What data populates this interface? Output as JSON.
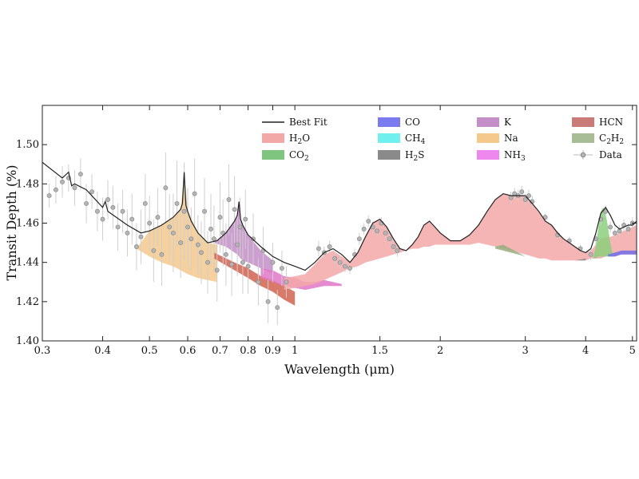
{
  "chart_data": {
    "type": "area",
    "xlabel": "Wavelength (μm)",
    "ylabel": "Transit Depth (%)",
    "x_scale": "log",
    "xlim": [
      0.3,
      5.1
    ],
    "ylim": [
      1.4,
      1.52
    ],
    "xticks": [
      {
        "value": 0.3,
        "label": "0.3"
      },
      {
        "value": 0.4,
        "label": "0.4"
      },
      {
        "value": 0.5,
        "label": "0.5"
      },
      {
        "value": 0.6,
        "label": "0.6"
      },
      {
        "value": 0.7,
        "label": "0.7"
      },
      {
        "value": 0.8,
        "label": "0.8"
      },
      {
        "value": 0.9,
        "label": "0.9"
      },
      {
        "value": 1.0,
        "label": "1"
      },
      {
        "value": 1.5,
        "label": "1.5"
      },
      {
        "value": 2.0,
        "label": "2"
      },
      {
        "value": 3.0,
        "label": "3"
      },
      {
        "value": 4.0,
        "label": "4"
      },
      {
        "value": 5.0,
        "label": "5"
      }
    ],
    "yticks": [
      {
        "value": 1.4,
        "label": "1.40"
      },
      {
        "value": 1.42,
        "label": "1.42"
      },
      {
        "value": 1.44,
        "label": "1.44"
      },
      {
        "value": 1.46,
        "label": "1.46"
      },
      {
        "value": 1.48,
        "label": "1.48"
      },
      {
        "value": 1.5,
        "label": "1.50"
      }
    ],
    "legend": {
      "placement": "top-right",
      "entries": [
        {
          "id": "best-fit",
          "label": "Best Fit",
          "kind": "line",
          "color": "#222222"
        },
        {
          "id": "co",
          "label": "CO",
          "kind": "patch",
          "color": "#7b7bf0"
        },
        {
          "id": "k",
          "label": "K",
          "kind": "patch",
          "color": "#c48ec8"
        },
        {
          "id": "hcn",
          "label": "HCN",
          "kind": "patch",
          "color": "#c97b77"
        },
        {
          "id": "h2o",
          "label": "H2O",
          "sub": "2",
          "label_parts": [
            "H",
            "2",
            "O"
          ],
          "kind": "patch",
          "color": "#f3a8a8"
        },
        {
          "id": "ch4",
          "label": "CH4",
          "label_parts": [
            "CH",
            "4",
            ""
          ],
          "kind": "patch",
          "color": "#6ff0ee"
        },
        {
          "id": "na",
          "label": "Na",
          "kind": "patch",
          "color": "#f5c88c"
        },
        {
          "id": "c2h2",
          "label": "C2H2",
          "label_parts": [
            "C",
            "2",
            "H",
            "2"
          ],
          "kind": "patch",
          "color": "#a8bd95"
        },
        {
          "id": "co2",
          "label": "CO2",
          "label_parts": [
            "CO",
            "2",
            ""
          ],
          "kind": "patch",
          "color": "#7fc47f"
        },
        {
          "id": "h2s",
          "label": "H2S",
          "label_parts": [
            "H",
            "2",
            "S"
          ],
          "kind": "patch",
          "color": "#8a8a8a"
        },
        {
          "id": "nh3",
          "label": "NH3",
          "label_parts": [
            "NH",
            "3",
            ""
          ],
          "kind": "patch",
          "color": "#ee88ee"
        },
        {
          "id": "data",
          "label": "Data",
          "kind": "marker",
          "color": "#888888"
        }
      ]
    },
    "best_fit": {
      "x": [
        0.3,
        0.33,
        0.34,
        0.345,
        0.35,
        0.37,
        0.4,
        0.405,
        0.41,
        0.45,
        0.48,
        0.5,
        0.53,
        0.56,
        0.58,
        0.585,
        0.59,
        0.595,
        0.6,
        0.61,
        0.63,
        0.66,
        0.69,
        0.72,
        0.75,
        0.76,
        0.766,
        0.772,
        0.78,
        0.8,
        0.85,
        0.9,
        0.95,
        1.0,
        1.05,
        1.1,
        1.15,
        1.2,
        1.25,
        1.3,
        1.35,
        1.4,
        1.45,
        1.5,
        1.55,
        1.6,
        1.65,
        1.7,
        1.75,
        1.8,
        1.85,
        1.9,
        1.95,
        2.0,
        2.1,
        2.2,
        2.3,
        2.4,
        2.5,
        2.6,
        2.7,
        2.8,
        2.9,
        3.0,
        3.1,
        3.2,
        3.3,
        3.4,
        3.5,
        3.6,
        3.7,
        3.8,
        3.9,
        4.0,
        4.1,
        4.2,
        4.3,
        4.4,
        4.5,
        4.6,
        4.7,
        4.8,
        4.9,
        5.0,
        5.1
      ],
      "y": [
        1.491,
        1.483,
        1.486,
        1.479,
        1.48,
        1.477,
        1.468,
        1.471,
        1.466,
        1.459,
        1.455,
        1.456,
        1.459,
        1.463,
        1.467,
        1.47,
        1.486,
        1.469,
        1.466,
        1.461,
        1.455,
        1.45,
        1.451,
        1.455,
        1.461,
        1.464,
        1.471,
        1.462,
        1.459,
        1.454,
        1.448,
        1.443,
        1.44,
        1.438,
        1.436,
        1.44,
        1.445,
        1.447,
        1.444,
        1.44,
        1.445,
        1.453,
        1.46,
        1.462,
        1.458,
        1.452,
        1.447,
        1.446,
        1.449,
        1.453,
        1.459,
        1.461,
        1.458,
        1.455,
        1.451,
        1.451,
        1.454,
        1.459,
        1.466,
        1.472,
        1.475,
        1.474,
        1.474,
        1.474,
        1.47,
        1.466,
        1.461,
        1.459,
        1.455,
        1.452,
        1.45,
        1.448,
        1.446,
        1.445,
        1.447,
        1.455,
        1.465,
        1.468,
        1.464,
        1.459,
        1.457,
        1.458,
        1.459,
        1.459,
        1.461
      ]
    },
    "series": [
      {
        "id": "na",
        "color": "#f5c88c",
        "x": [
          0.47,
          0.5,
          0.53,
          0.56,
          0.58,
          0.59,
          0.6,
          0.63,
          0.66,
          0.69
        ],
        "y_top": [
          1.447,
          1.456,
          1.459,
          1.463,
          1.467,
          1.486,
          1.466,
          1.455,
          1.45,
          1.449
        ],
        "y_base": [
          1.447,
          1.443,
          1.44,
          1.438,
          1.436,
          1.435,
          1.434,
          1.432,
          1.431,
          1.43
        ]
      },
      {
        "id": "k",
        "color": "#c48ec8",
        "x": [
          0.68,
          0.72,
          0.75,
          0.76,
          0.766,
          0.772,
          0.78,
          0.8,
          0.85,
          0.9
        ],
        "y_top": [
          1.45,
          1.455,
          1.461,
          1.464,
          1.471,
          1.462,
          1.459,
          1.454,
          1.446,
          1.441
        ],
        "y_base": [
          1.45,
          1.448,
          1.445,
          1.444,
          1.443,
          1.442,
          1.441,
          1.44,
          1.437,
          1.434
        ]
      },
      {
        "id": "hcn",
        "color": "#d2614f",
        "x": [
          0.68,
          0.75,
          0.8,
          0.85,
          0.9,
          0.95,
          1.0
        ],
        "y_top": [
          1.445,
          1.44,
          1.437,
          1.433,
          1.431,
          1.428,
          1.425
        ],
        "y_base": [
          1.442,
          1.436,
          1.432,
          1.428,
          1.425,
          1.421,
          1.418
        ]
      },
      {
        "id": "nh3",
        "color": "#e078c8",
        "x": [
          0.85,
          0.9,
          0.95,
          1.0,
          1.05,
          1.1,
          1.15,
          1.2,
          1.25
        ],
        "y_top": [
          1.437,
          1.436,
          1.433,
          1.432,
          1.43,
          1.43,
          1.431,
          1.43,
          1.429
        ],
        "y_base": [
          1.432,
          1.43,
          1.428,
          1.427,
          1.426,
          1.427,
          1.428,
          1.428,
          1.428
        ]
      },
      {
        "id": "h2o",
        "color": "#f3a8a8",
        "x": [
          0.95,
          1.0,
          1.05,
          1.1,
          1.15,
          1.2,
          1.25,
          1.3,
          1.35,
          1.4,
          1.45,
          1.5,
          1.55,
          1.6,
          1.65,
          1.7,
          1.75,
          1.8,
          1.85,
          1.9,
          1.95,
          2.0,
          2.1,
          2.2,
          2.3,
          2.4,
          2.5,
          2.6,
          2.7,
          2.8,
          2.9,
          3.0,
          3.1,
          3.2,
          3.3,
          3.4,
          3.5,
          3.6,
          3.7,
          3.8,
          3.9,
          4.0,
          4.1,
          4.2,
          4.3,
          4.4,
          4.5,
          4.6,
          4.7,
          4.8,
          4.9,
          5.0,
          5.1
        ],
        "y_top": [
          1.432,
          1.433,
          1.434,
          1.439,
          1.444,
          1.446,
          1.443,
          1.44,
          1.445,
          1.453,
          1.46,
          1.462,
          1.458,
          1.452,
          1.447,
          1.446,
          1.449,
          1.453,
          1.459,
          1.461,
          1.458,
          1.455,
          1.451,
          1.451,
          1.454,
          1.459,
          1.466,
          1.472,
          1.475,
          1.474,
          1.474,
          1.474,
          1.47,
          1.466,
          1.461,
          1.459,
          1.455,
          1.452,
          1.45,
          1.448,
          1.446,
          1.445,
          1.446,
          1.449,
          1.452,
          1.453,
          1.453,
          1.454,
          1.455,
          1.456,
          1.457,
          1.458,
          1.459
        ],
        "y_base": [
          1.426,
          1.427,
          1.428,
          1.429,
          1.431,
          1.433,
          1.435,
          1.437,
          1.438,
          1.44,
          1.441,
          1.442,
          1.443,
          1.444,
          1.445,
          1.446,
          1.447,
          1.447,
          1.448,
          1.448,
          1.449,
          1.449,
          1.449,
          1.449,
          1.449,
          1.45,
          1.449,
          1.448,
          1.447,
          1.446,
          1.445,
          1.444,
          1.443,
          1.442,
          1.442,
          1.441,
          1.441,
          1.441,
          1.441,
          1.441,
          1.441,
          1.441,
          1.442,
          1.442,
          1.442,
          1.443,
          1.443,
          1.443,
          1.444,
          1.444,
          1.444,
          1.444,
          1.444
        ]
      },
      {
        "id": "co2",
        "color": "#8ccf7e",
        "x": [
          4.15,
          4.2,
          4.25,
          4.3,
          4.35,
          4.4,
          4.45,
          4.5,
          4.55
        ],
        "y_top": [
          1.443,
          1.448,
          1.458,
          1.466,
          1.468,
          1.465,
          1.458,
          1.45,
          1.444
        ],
        "y_base": [
          1.442,
          1.442,
          1.443,
          1.443,
          1.443,
          1.443,
          1.443,
          1.443,
          1.443
        ]
      },
      {
        "id": "c2h2",
        "color": "#98ad7e",
        "x": [
          2.6,
          2.7,
          2.8,
          2.9,
          3.0,
          3.05
        ],
        "y_top": [
          1.448,
          1.449,
          1.447,
          1.445,
          1.443,
          1.442
        ],
        "y_base": [
          1.447,
          1.446,
          1.445,
          1.444,
          1.443,
          1.442
        ]
      },
      {
        "id": "ch4",
        "color": "#6ff0ee",
        "x": [
          3.2,
          3.3,
          3.4,
          3.5
        ],
        "y_top": [
          1.442,
          1.442,
          1.441,
          1.441
        ],
        "y_base": [
          1.442,
          1.442,
          1.441,
          1.441
        ]
      },
      {
        "id": "co",
        "color": "#6e6ee8",
        "x": [
          4.45,
          4.6,
          4.75,
          4.9,
          5.1
        ],
        "y_top": [
          1.444,
          1.445,
          1.446,
          1.446,
          1.446
        ],
        "y_base": [
          1.443,
          1.443,
          1.444,
          1.444,
          1.444
        ]
      },
      {
        "id": "h2s",
        "color": "#8a8a8a",
        "x": [
          3.6,
          3.8,
          4.0
        ],
        "y_top": [
          1.441,
          1.441,
          1.442
        ],
        "y_base": [
          1.441,
          1.441,
          1.441
        ]
      }
    ],
    "data_points": {
      "x": [
        0.31,
        0.32,
        0.33,
        0.34,
        0.35,
        0.36,
        0.37,
        0.38,
        0.39,
        0.4,
        0.41,
        0.42,
        0.43,
        0.44,
        0.45,
        0.46,
        0.47,
        0.48,
        0.49,
        0.5,
        0.51,
        0.52,
        0.53,
        0.54,
        0.55,
        0.56,
        0.57,
        0.58,
        0.59,
        0.6,
        0.61,
        0.62,
        0.63,
        0.64,
        0.65,
        0.66,
        0.67,
        0.68,
        0.69,
        0.7,
        0.71,
        0.72,
        0.73,
        0.74,
        0.75,
        0.76,
        0.77,
        0.78,
        0.79,
        0.8,
        0.82,
        0.84,
        0.86,
        0.88,
        0.9,
        0.92,
        0.94,
        0.96,
        1.12,
        1.15,
        1.18,
        1.21,
        1.24,
        1.27,
        1.3,
        1.33,
        1.36,
        1.39,
        1.42,
        1.45,
        1.48,
        1.51,
        1.54,
        1.57,
        1.6,
        1.63,
        2.8,
        2.85,
        2.9,
        2.95,
        3.0,
        3.05,
        3.1,
        3.3,
        3.5,
        3.7,
        3.9,
        4.1,
        4.2,
        4.3,
        4.4,
        4.5,
        4.6,
        4.7,
        4.8,
        4.9,
        5.0
      ],
      "y": [
        1.474,
        1.477,
        1.481,
        1.483,
        1.478,
        1.485,
        1.47,
        1.476,
        1.466,
        1.462,
        1.472,
        1.468,
        1.458,
        1.466,
        1.455,
        1.462,
        1.448,
        1.453,
        1.47,
        1.46,
        1.446,
        1.463,
        1.444,
        1.478,
        1.458,
        1.455,
        1.47,
        1.45,
        1.466,
        1.458,
        1.452,
        1.475,
        1.449,
        1.445,
        1.466,
        1.44,
        1.457,
        1.452,
        1.436,
        1.463,
        1.455,
        1.444,
        1.472,
        1.439,
        1.467,
        1.449,
        1.458,
        1.44,
        1.462,
        1.438,
        1.452,
        1.43,
        1.446,
        1.42,
        1.44,
        1.417,
        1.437,
        1.43,
        1.447,
        1.445,
        1.448,
        1.442,
        1.44,
        1.438,
        1.437,
        1.444,
        1.452,
        1.457,
        1.461,
        1.458,
        1.456,
        1.46,
        1.455,
        1.452,
        1.448,
        1.446,
        1.473,
        1.475,
        1.474,
        1.476,
        1.472,
        1.474,
        1.471,
        1.463,
        1.454,
        1.451,
        1.447,
        1.444,
        1.452,
        1.462,
        1.466,
        1.458,
        1.455,
        1.456,
        1.459,
        1.457,
        1.46
      ],
      "err": [
        0.006,
        0.007,
        0.008,
        0.007,
        0.009,
        0.008,
        0.01,
        0.009,
        0.01,
        0.011,
        0.01,
        0.011,
        0.012,
        0.011,
        0.012,
        0.013,
        0.012,
        0.014,
        0.015,
        0.014,
        0.016,
        0.015,
        0.016,
        0.018,
        0.017,
        0.02,
        0.022,
        0.018,
        0.025,
        0.02,
        0.016,
        0.018,
        0.015,
        0.016,
        0.017,
        0.016,
        0.018,
        0.017,
        0.016,
        0.018,
        0.017,
        0.016,
        0.018,
        0.016,
        0.017,
        0.016,
        0.015,
        0.016,
        0.015,
        0.014,
        0.013,
        0.012,
        0.012,
        0.011,
        0.01,
        0.009,
        0.009,
        0.008,
        0.004,
        0.003,
        0.003,
        0.003,
        0.003,
        0.003,
        0.003,
        0.003,
        0.003,
        0.003,
        0.003,
        0.003,
        0.003,
        0.003,
        0.003,
        0.003,
        0.003,
        0.003,
        0.003,
        0.003,
        0.003,
        0.003,
        0.003,
        0.003,
        0.003,
        0.002,
        0.002,
        0.002,
        0.002,
        0.003,
        0.003,
        0.003,
        0.003,
        0.003,
        0.003,
        0.003,
        0.003,
        0.003,
        0.003
      ]
    }
  }
}
